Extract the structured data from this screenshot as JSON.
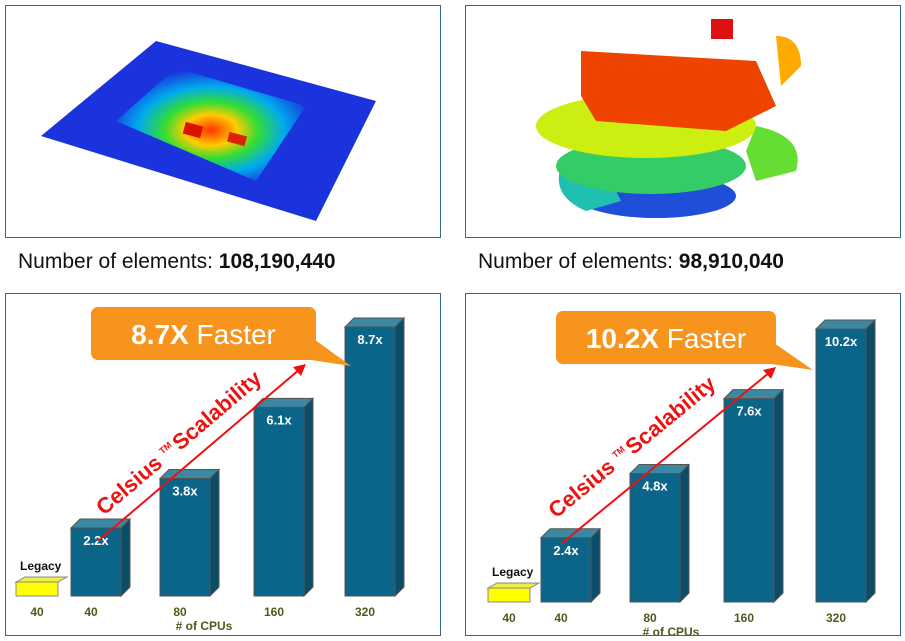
{
  "top_left": {
    "caption_label": "Number of elements: ",
    "caption_value": "108,190,440"
  },
  "top_right": {
    "caption_label": "Number of elements: ",
    "caption_value": "98,910,040"
  },
  "chart_data": [
    {
      "type": "bar",
      "title": "",
      "callout_bold": "8.7X",
      "callout_text": "Faster",
      "arrow_label": "Celsius",
      "arrow_tm": "TM",
      "arrow_label2": "Scalability",
      "xlabel": "# of CPUs",
      "legacy_label": "Legacy",
      "legacy_cpus": "40",
      "legacy_value": 1,
      "categories": [
        "40",
        "80",
        "160",
        "320"
      ],
      "values": [
        2.2,
        3.8,
        6.1,
        8.7
      ],
      "labels": [
        "2.2x",
        "3.8x",
        "6.1x",
        "8.7x"
      ]
    },
    {
      "type": "bar",
      "title": "",
      "callout_bold": "10.2X",
      "callout_text": "Faster",
      "arrow_label": "Celsius",
      "arrow_tm": "TM",
      "arrow_label2": "Scalability",
      "xlabel": "# of CPUs",
      "legacy_label": "Legacy",
      "legacy_cpus": "40",
      "legacy_value": 1,
      "categories": [
        "40",
        "80",
        "160",
        "320"
      ],
      "values": [
        2.4,
        4.8,
        7.6,
        10.2
      ],
      "labels": [
        "2.4x",
        "4.8x",
        "7.6x",
        "10.2x"
      ]
    }
  ],
  "colors": {
    "bar": "#0b6588",
    "bar_top": "#3b88a3",
    "bar_side": "#0a4d68",
    "legacy": "#ffff00",
    "callout": "#f7941d",
    "arrow": "#ee1111",
    "axis_text": "#4f5a1d"
  }
}
